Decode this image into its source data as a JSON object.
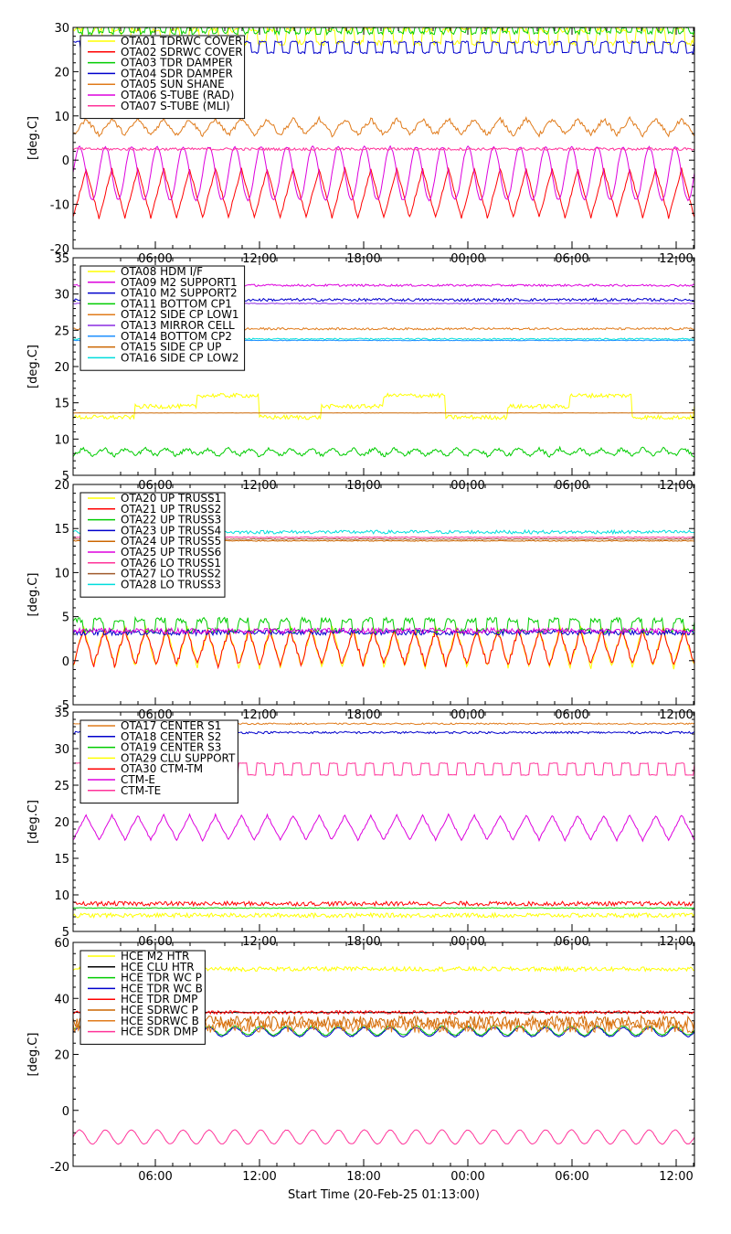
{
  "xlabel": "Start Time (20-Feb-25 01:13:00)",
  "x_ticks": [
    "06:00",
    "12:00",
    "18:00",
    "00:00",
    "06:00",
    "12:00"
  ],
  "chart_data": [
    {
      "type": "line",
      "ylabel": "[deg.C]",
      "ylim": [
        -20,
        30
      ],
      "y_ticks": [
        "-20",
        "-10",
        "0",
        "10",
        "20",
        "30"
      ],
      "legend_placement": "top-left",
      "series": [
        {
          "name": "OTA01 TDRWC COVER",
          "color": "#ffff00",
          "shape": "square",
          "base": 28,
          "amp": 1.5,
          "periods": 32,
          "noise": 0.6
        },
        {
          "name": "OTA02 SDRWC COVER",
          "color": "#ff0000",
          "shape": "tri",
          "base": -7.5,
          "amp": 5.5,
          "periods": 24,
          "noise": 0.3
        },
        {
          "name": "OTA03 TDR DAMPER",
          "color": "#00cc00",
          "shape": "square",
          "base": 29.5,
          "amp": 0.7,
          "periods": 60,
          "noise": 0.4
        },
        {
          "name": "OTA04 SDR DAMPER",
          "color": "#0000cc",
          "shape": "square",
          "base": 25.5,
          "amp": 1.2,
          "periods": 40,
          "noise": 0.2
        },
        {
          "name": "OTA05 SUN SHANE",
          "color": "#e07b1b",
          "shape": "tri",
          "base": 7.5,
          "amp": 1.8,
          "periods": 24,
          "noise": 0.5
        },
        {
          "name": "OTA06 S-TUBE (RAD)",
          "color": "#dd00dd",
          "shape": "sine",
          "base": -3,
          "amp": 6,
          "periods": 24,
          "noise": 0.2
        },
        {
          "name": "OTA07 S-TUBE (MLI)",
          "color": "#ff3399",
          "shape": "flat",
          "base": 2.5,
          "amp": 0,
          "periods": 0,
          "noise": 0.3
        }
      ]
    },
    {
      "type": "line",
      "ylabel": "[deg.C]",
      "ylim": [
        5,
        35
      ],
      "y_ticks": [
        "5",
        "10",
        "15",
        "20",
        "25",
        "30",
        "35"
      ],
      "legend_placement": "top-left",
      "series": [
        {
          "name": "OTA08 HDM I/F",
          "color": "#ffff00",
          "shape": "steps",
          "base": 14.5,
          "amp": 1.5,
          "periods": 10,
          "noise": 0.3
        },
        {
          "name": "OTA09 M2 SUPPORT1",
          "color": "#dd00dd",
          "shape": "flat",
          "base": 31.2,
          "amp": 0,
          "periods": 0,
          "noise": 0.15
        },
        {
          "name": "OTA10 M2 SUPPORT2",
          "color": "#0000cc",
          "shape": "flat",
          "base": 29.2,
          "amp": 0,
          "periods": 0,
          "noise": 0.2
        },
        {
          "name": "OTA11 BOTTOM CP1",
          "color": "#00cc00",
          "shape": "tri",
          "base": 8.2,
          "amp": 0.5,
          "periods": 30,
          "noise": 0.25
        },
        {
          "name": "OTA12 SIDE CP LOW1",
          "color": "#e07b1b",
          "shape": "flat",
          "base": 25.2,
          "amp": 0,
          "periods": 0,
          "noise": 0.15
        },
        {
          "name": "OTA13 MIRROR CELL",
          "color": "#8a2be2",
          "shape": "flat",
          "base": 28.7,
          "amp": 0,
          "periods": 0,
          "noise": 0.05
        },
        {
          "name": "OTA14 BOTTOM CP2",
          "color": "#1e90ff",
          "shape": "flat",
          "base": 23.6,
          "amp": 0,
          "periods": 0,
          "noise": 0.05
        },
        {
          "name": "OTA15 SIDE CP UP",
          "color": "#cc6600",
          "shape": "flat",
          "base": 13.6,
          "amp": 0,
          "periods": 0,
          "noise": 0.02
        },
        {
          "name": "OTA16 SIDE CP LOW2",
          "color": "#00dddd",
          "shape": "flat",
          "base": 23.8,
          "amp": 0,
          "periods": 0,
          "noise": 0.1
        }
      ]
    },
    {
      "type": "line",
      "ylabel": "[deg.C]",
      "ylim": [
        -5,
        20
      ],
      "y_ticks": [
        "-5",
        "0",
        "5",
        "10",
        "15",
        "20"
      ],
      "legend_placement": "top-left",
      "series": [
        {
          "name": "OTA20 UP TRUSS1",
          "color": "#ffff00",
          "shape": "tri",
          "base": 1.5,
          "amp": 2.2,
          "periods": 30,
          "noise": 0.3
        },
        {
          "name": "OTA21 UP TRUSS2",
          "color": "#ff0000",
          "shape": "tri",
          "base": 1.5,
          "amp": 2.0,
          "periods": 30,
          "noise": 0.3
        },
        {
          "name": "OTA22 UP TRUSS3",
          "color": "#00cc00",
          "shape": "square",
          "base": 4.0,
          "amp": 0.6,
          "periods": 30,
          "noise": 0.3
        },
        {
          "name": "OTA23 UP TRUSS4",
          "color": "#0000cc",
          "shape": "flat",
          "base": 3.2,
          "amp": 0,
          "periods": 0,
          "noise": 0.3
        },
        {
          "name": "OTA24 UP TRUSS5",
          "color": "#cc6600",
          "shape": "flat",
          "base": 13.6,
          "amp": 0,
          "periods": 0,
          "noise": 0.05
        },
        {
          "name": "OTA25 UP TRUSS6",
          "color": "#dd00dd",
          "shape": "flat",
          "base": 3.4,
          "amp": 0,
          "periods": 0,
          "noise": 0.3
        },
        {
          "name": "OTA26 LO TRUSS1",
          "color": "#ff3399",
          "shape": "flat",
          "base": 14.0,
          "amp": 0,
          "periods": 0,
          "noise": 0.05
        },
        {
          "name": "OTA27 LO TRUSS2",
          "color": "#a05a2c",
          "shape": "flat",
          "base": 13.8,
          "amp": 0,
          "periods": 0,
          "noise": 0.05
        },
        {
          "name": "OTA28 LO TRUSS3",
          "color": "#00dddd",
          "shape": "flat",
          "base": 14.6,
          "amp": 0,
          "periods": 0,
          "noise": 0.2
        }
      ]
    },
    {
      "type": "line",
      "ylabel": "[deg.C]",
      "ylim": [
        5,
        35
      ],
      "y_ticks": [
        "5",
        "10",
        "15",
        "20",
        "25",
        "30",
        "35"
      ],
      "legend_placement": "top-left",
      "series": [
        {
          "name": "OTA17 CENTER S1",
          "color": "#e07b1b",
          "shape": "flat",
          "base": 33.4,
          "amp": 0,
          "periods": 0,
          "noise": 0.1
        },
        {
          "name": "OTA18 CENTER S2",
          "color": "#0000cc",
          "shape": "flat",
          "base": 32.2,
          "amp": 0,
          "periods": 0,
          "noise": 0.15
        },
        {
          "name": "OTA19 CENTER S3",
          "color": "#00cc00",
          "shape": "flat",
          "base": 8.2,
          "amp": 0,
          "periods": 0,
          "noise": 0.05
        },
        {
          "name": "OTA29 CLU SUPPORT",
          "color": "#ffff00",
          "shape": "flat",
          "base": 7.2,
          "amp": 0,
          "periods": 0,
          "noise": 0.3
        },
        {
          "name": "OTA30 CTM-TM",
          "color": "#ff0000",
          "shape": "flat",
          "base": 8.8,
          "amp": 0,
          "periods": 0,
          "noise": 0.3
        },
        {
          "name": "CTM-E",
          "color": "#dd00dd",
          "shape": "tri",
          "base": 19.2,
          "amp": 1.7,
          "periods": 24,
          "noise": 0.15
        },
        {
          "name": "CTM-TE",
          "color": "#ff3399",
          "shape": "square",
          "base": 27.2,
          "amp": 0.8,
          "periods": 34,
          "noise": 0.05
        }
      ]
    },
    {
      "type": "line",
      "ylabel": "[deg.C]",
      "ylim": [
        -20,
        60
      ],
      "y_ticks": [
        "-20",
        "0",
        "20",
        "40",
        "60"
      ],
      "legend_placement": "top-left",
      "series": [
        {
          "name": "HCE M2 HTR",
          "color": "#ffff00",
          "shape": "flat",
          "base": 50.5,
          "amp": 0,
          "periods": 0,
          "noise": 0.8
        },
        {
          "name": "HCE CLU HTR",
          "color": "#000000",
          "shape": "flat",
          "base": 35.0,
          "amp": 0,
          "periods": 0,
          "noise": 0.1
        },
        {
          "name": "HCE TDR WC P",
          "color": "#00cc00",
          "shape": "sine",
          "base": 28.5,
          "amp": 1.6,
          "periods": 24,
          "noise": 0.2
        },
        {
          "name": "HCE TDR WC B",
          "color": "#0000cc",
          "shape": "sine",
          "base": 28.0,
          "amp": 1.6,
          "periods": 24,
          "noise": 0.2
        },
        {
          "name": "HCE TDR DMP",
          "color": "#ff0000",
          "shape": "flat",
          "base": 35.0,
          "amp": 0,
          "periods": 0,
          "noise": 0.6
        },
        {
          "name": "HCE SDRWC P",
          "color": "#cc6600",
          "shape": "flat",
          "base": 31.5,
          "amp": 0,
          "periods": 0,
          "noise": 2.2
        },
        {
          "name": "HCE SDRWC B",
          "color": "#e07b1b",
          "shape": "flat",
          "base": 30.0,
          "amp": 0,
          "periods": 0,
          "noise": 2.2
        },
        {
          "name": "HCE SDR DMP",
          "color": "#ff3399",
          "shape": "sine",
          "base": -9.5,
          "amp": 2.5,
          "periods": 24,
          "noise": 0.1
        }
      ]
    }
  ]
}
